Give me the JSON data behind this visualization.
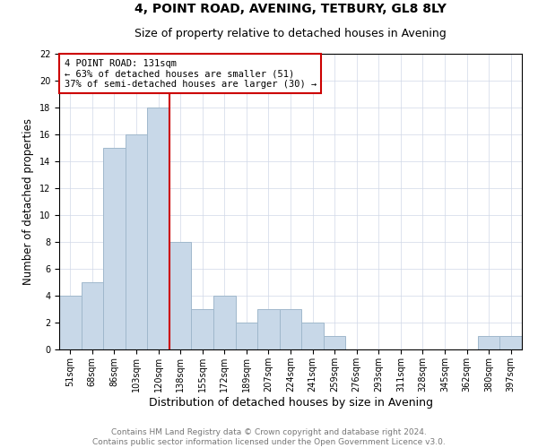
{
  "title": "4, POINT ROAD, AVENING, TETBURY, GL8 8LY",
  "subtitle": "Size of property relative to detached houses in Avening",
  "xlabel": "Distribution of detached houses by size in Avening",
  "ylabel": "Number of detached properties",
  "categories": [
    "51sqm",
    "68sqm",
    "86sqm",
    "103sqm",
    "120sqm",
    "138sqm",
    "155sqm",
    "172sqm",
    "189sqm",
    "207sqm",
    "224sqm",
    "241sqm",
    "259sqm",
    "276sqm",
    "293sqm",
    "311sqm",
    "328sqm",
    "345sqm",
    "362sqm",
    "380sqm",
    "397sqm"
  ],
  "values": [
    4,
    5,
    15,
    16,
    18,
    8,
    3,
    4,
    2,
    3,
    3,
    2,
    1,
    0,
    0,
    0,
    0,
    0,
    0,
    1,
    1
  ],
  "bar_color": "#c8d8e8",
  "bar_edge_color": "#a0b8cc",
  "grid_color": "#d0d8e8",
  "subject_line_color": "#cc0000",
  "annotation_text": "4 POINT ROAD: 131sqm\n← 63% of detached houses are smaller (51)\n37% of semi-detached houses are larger (30) →",
  "annotation_box_color": "#ffffff",
  "annotation_box_edge": "#cc0000",
  "ylim": [
    0,
    22
  ],
  "yticks": [
    0,
    2,
    4,
    6,
    8,
    10,
    12,
    14,
    16,
    18,
    20,
    22
  ],
  "footer_line1": "Contains HM Land Registry data © Crown copyright and database right 2024.",
  "footer_line2": "Contains public sector information licensed under the Open Government Licence v3.0.",
  "title_fontsize": 10,
  "subtitle_fontsize": 9,
  "xlabel_fontsize": 9,
  "ylabel_fontsize": 8.5,
  "tick_fontsize": 7,
  "footer_fontsize": 6.5,
  "annotation_fontsize": 7.5
}
